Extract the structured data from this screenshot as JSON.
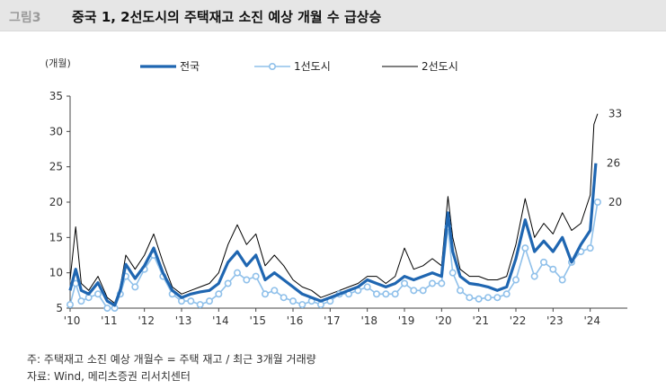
{
  "header": {
    "figure_label": "그림3",
    "title": "중국 1, 2선도시의 주택재고 소진 예상 개월 수 급상승"
  },
  "footnotes": {
    "note": "주: 주택재고 소진 예상 개월수 = 주택 재고 / 최근 3개월 거래량",
    "source": "자료: Wind, 메리츠증권 리서치센터"
  },
  "colors": {
    "national": "#1f66b1",
    "tier1": "#8fc0ea",
    "tier2": "#000000"
  },
  "chart_data": {
    "type": "line",
    "ylabel": "(개월)",
    "ylim": [
      5,
      35
    ],
    "yticks": [
      5,
      10,
      15,
      20,
      25,
      30,
      35
    ],
    "xlim": [
      2010.0,
      2025.0
    ],
    "xtick_labels": [
      "'10",
      "'11",
      "'12",
      "'13",
      "'14",
      "'15",
      "'16",
      "'17",
      "'18",
      "'19",
      "'20",
      "'21",
      "'22",
      "'23",
      "'24"
    ],
    "legend_position": "top",
    "end_labels": [
      "33",
      "26",
      "20"
    ],
    "series": [
      {
        "name": "전국",
        "key": "national",
        "points": [
          [
            2010.0,
            7.5
          ],
          [
            2010.15,
            10.5
          ],
          [
            2010.3,
            7.5
          ],
          [
            2010.5,
            7.0
          ],
          [
            2010.75,
            8.6
          ],
          [
            2011.0,
            6.0
          ],
          [
            2011.2,
            5.4
          ],
          [
            2011.35,
            7.5
          ],
          [
            2011.5,
            11.2
          ],
          [
            2011.75,
            9.2
          ],
          [
            2012.0,
            11.0
          ],
          [
            2012.25,
            13.5
          ],
          [
            2012.5,
            10.0
          ],
          [
            2012.75,
            7.5
          ],
          [
            2013.0,
            6.5
          ],
          [
            2013.25,
            7.0
          ],
          [
            2013.5,
            7.3
          ],
          [
            2013.75,
            7.5
          ],
          [
            2014.0,
            8.5
          ],
          [
            2014.25,
            11.5
          ],
          [
            2014.5,
            13.0
          ],
          [
            2014.75,
            11.0
          ],
          [
            2015.0,
            12.5
          ],
          [
            2015.25,
            9.0
          ],
          [
            2015.5,
            10.0
          ],
          [
            2015.75,
            9.0
          ],
          [
            2016.0,
            8.0
          ],
          [
            2016.25,
            7.0
          ],
          [
            2016.5,
            6.5
          ],
          [
            2016.75,
            6.0
          ],
          [
            2017.0,
            6.5
          ],
          [
            2017.25,
            7.0
          ],
          [
            2017.5,
            7.5
          ],
          [
            2017.75,
            8.0
          ],
          [
            2018.0,
            9.0
          ],
          [
            2018.25,
            8.5
          ],
          [
            2018.5,
            8.0
          ],
          [
            2018.75,
            8.5
          ],
          [
            2019.0,
            9.5
          ],
          [
            2019.25,
            9.0
          ],
          [
            2019.5,
            9.5
          ],
          [
            2019.75,
            10.0
          ],
          [
            2020.0,
            9.5
          ],
          [
            2020.17,
            18.5
          ],
          [
            2020.3,
            13.0
          ],
          [
            2020.5,
            9.5
          ],
          [
            2020.75,
            8.5
          ],
          [
            2021.0,
            8.3
          ],
          [
            2021.25,
            8.0
          ],
          [
            2021.5,
            7.5
          ],
          [
            2021.75,
            8.0
          ],
          [
            2022.0,
            12.0
          ],
          [
            2022.25,
            17.5
          ],
          [
            2022.5,
            13.0
          ],
          [
            2022.75,
            14.5
          ],
          [
            2023.0,
            13.0
          ],
          [
            2023.25,
            15.0
          ],
          [
            2023.5,
            11.5
          ],
          [
            2023.75,
            14.0
          ],
          [
            2024.0,
            16.0
          ],
          [
            2024.15,
            25.5
          ]
        ]
      },
      {
        "name": "1선도시",
        "key": "tier1",
        "points": [
          [
            2010.0,
            5.5
          ],
          [
            2010.15,
            8.5
          ],
          [
            2010.3,
            6.0
          ],
          [
            2010.5,
            6.5
          ],
          [
            2010.75,
            7.0
          ],
          [
            2011.0,
            5.0
          ],
          [
            2011.2,
            5.0
          ],
          [
            2011.35,
            7.0
          ],
          [
            2011.5,
            9.5
          ],
          [
            2011.75,
            8.0
          ],
          [
            2012.0,
            10.5
          ],
          [
            2012.25,
            12.5
          ],
          [
            2012.5,
            9.5
          ],
          [
            2012.75,
            7.0
          ],
          [
            2013.0,
            6.0
          ],
          [
            2013.25,
            6.0
          ],
          [
            2013.5,
            5.5
          ],
          [
            2013.75,
            6.0
          ],
          [
            2014.0,
            7.0
          ],
          [
            2014.25,
            8.5
          ],
          [
            2014.5,
            10.0
          ],
          [
            2014.75,
            9.0
          ],
          [
            2015.0,
            9.5
          ],
          [
            2015.25,
            7.0
          ],
          [
            2015.5,
            7.5
          ],
          [
            2015.75,
            6.5
          ],
          [
            2016.0,
            6.0
          ],
          [
            2016.25,
            5.5
          ],
          [
            2016.5,
            6.0
          ],
          [
            2016.75,
            5.5
          ],
          [
            2017.0,
            6.0
          ],
          [
            2017.25,
            7.0
          ],
          [
            2017.5,
            7.0
          ],
          [
            2017.75,
            7.5
          ],
          [
            2018.0,
            8.0
          ],
          [
            2018.25,
            7.0
          ],
          [
            2018.5,
            7.0
          ],
          [
            2018.75,
            7.0
          ],
          [
            2019.0,
            8.5
          ],
          [
            2019.25,
            7.5
          ],
          [
            2019.5,
            7.5
          ],
          [
            2019.75,
            8.5
          ],
          [
            2020.0,
            8.5
          ],
          [
            2020.17,
            16.5
          ],
          [
            2020.3,
            10.0
          ],
          [
            2020.5,
            7.5
          ],
          [
            2020.75,
            6.5
          ],
          [
            2021.0,
            6.3
          ],
          [
            2021.25,
            6.5
          ],
          [
            2021.5,
            6.5
          ],
          [
            2021.75,
            7.0
          ],
          [
            2022.0,
            9.0
          ],
          [
            2022.25,
            13.5
          ],
          [
            2022.5,
            9.5
          ],
          [
            2022.75,
            11.5
          ],
          [
            2023.0,
            10.5
          ],
          [
            2023.25,
            9.0
          ],
          [
            2023.5,
            11.5
          ],
          [
            2023.75,
            13.0
          ],
          [
            2024.0,
            13.5
          ],
          [
            2024.2,
            20.0
          ]
        ]
      },
      {
        "name": "2선도시",
        "key": "tier2",
        "points": [
          [
            2010.0,
            9.0
          ],
          [
            2010.15,
            16.5
          ],
          [
            2010.3,
            8.5
          ],
          [
            2010.5,
            7.5
          ],
          [
            2010.75,
            9.5
          ],
          [
            2011.0,
            6.5
          ],
          [
            2011.2,
            5.7
          ],
          [
            2011.35,
            8.0
          ],
          [
            2011.5,
            12.5
          ],
          [
            2011.75,
            10.5
          ],
          [
            2012.0,
            12.5
          ],
          [
            2012.25,
            15.5
          ],
          [
            2012.5,
            11.5
          ],
          [
            2012.75,
            8.0
          ],
          [
            2013.0,
            7.0
          ],
          [
            2013.25,
            7.5
          ],
          [
            2013.5,
            8.0
          ],
          [
            2013.75,
            8.5
          ],
          [
            2014.0,
            10.0
          ],
          [
            2014.25,
            14.0
          ],
          [
            2014.5,
            16.8
          ],
          [
            2014.75,
            14.0
          ],
          [
            2015.0,
            15.5
          ],
          [
            2015.25,
            11.0
          ],
          [
            2015.5,
            12.5
          ],
          [
            2015.75,
            11.0
          ],
          [
            2016.0,
            9.0
          ],
          [
            2016.25,
            8.0
          ],
          [
            2016.5,
            7.5
          ],
          [
            2016.75,
            6.5
          ],
          [
            2017.0,
            7.0
          ],
          [
            2017.25,
            7.5
          ],
          [
            2017.5,
            8.0
          ],
          [
            2017.75,
            8.5
          ],
          [
            2018.0,
            9.5
          ],
          [
            2018.25,
            9.5
          ],
          [
            2018.5,
            8.5
          ],
          [
            2018.75,
            9.5
          ],
          [
            2019.0,
            13.5
          ],
          [
            2019.25,
            10.5
          ],
          [
            2019.5,
            11.0
          ],
          [
            2019.75,
            12.0
          ],
          [
            2020.0,
            11.0
          ],
          [
            2020.17,
            20.8
          ],
          [
            2020.3,
            15.0
          ],
          [
            2020.5,
            10.5
          ],
          [
            2020.75,
            9.5
          ],
          [
            2021.0,
            9.5
          ],
          [
            2021.25,
            9.0
          ],
          [
            2021.5,
            9.0
          ],
          [
            2021.75,
            9.5
          ],
          [
            2022.0,
            14.0
          ],
          [
            2022.25,
            20.5
          ],
          [
            2022.5,
            15.0
          ],
          [
            2022.75,
            17.0
          ],
          [
            2023.0,
            15.5
          ],
          [
            2023.25,
            18.5
          ],
          [
            2023.5,
            16.0
          ],
          [
            2023.75,
            17.0
          ],
          [
            2024.0,
            21.0
          ],
          [
            2024.1,
            31.0
          ],
          [
            2024.2,
            32.5
          ]
        ]
      }
    ]
  }
}
